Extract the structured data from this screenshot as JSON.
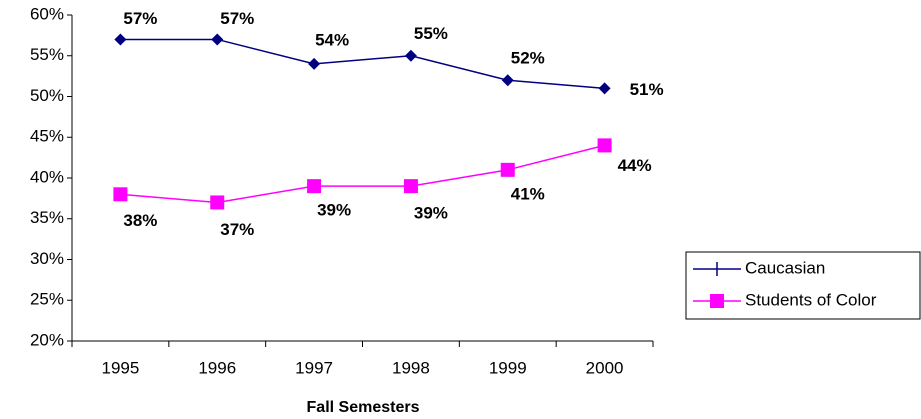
{
  "chart_data": {
    "type": "line",
    "x_label": "Fall Semesters",
    "categories": [
      "1995",
      "1996",
      "1997",
      "1998",
      "1999",
      "2000"
    ],
    "series": [
      {
        "name": "Caucasian",
        "color": "#000080",
        "values": [
          57,
          57,
          54,
          55,
          52,
          51
        ],
        "value_labels": [
          "57%",
          "57%",
          "54%",
          "55%",
          "52%",
          "51%"
        ]
      },
      {
        "name": "Students of Color",
        "color": "#ff00ff",
        "values": [
          38,
          37,
          39,
          39,
          41,
          44
        ],
        "value_labels": [
          "38%",
          "37%",
          "39%",
          "39%",
          "41%",
          "44%"
        ]
      }
    ],
    "ylim": [
      20,
      60
    ],
    "yticks": [
      {
        "value": 20,
        "label": "20%"
      },
      {
        "value": 25,
        "label": "25%"
      },
      {
        "value": 30,
        "label": "30%"
      },
      {
        "value": 35,
        "label": "35%"
      },
      {
        "value": 40,
        "label": "40%"
      },
      {
        "value": 45,
        "label": "45%"
      },
      {
        "value": 50,
        "label": "50%"
      },
      {
        "value": 55,
        "label": "55%"
      },
      {
        "value": 60,
        "label": "60%"
      }
    ],
    "legend": "right"
  }
}
